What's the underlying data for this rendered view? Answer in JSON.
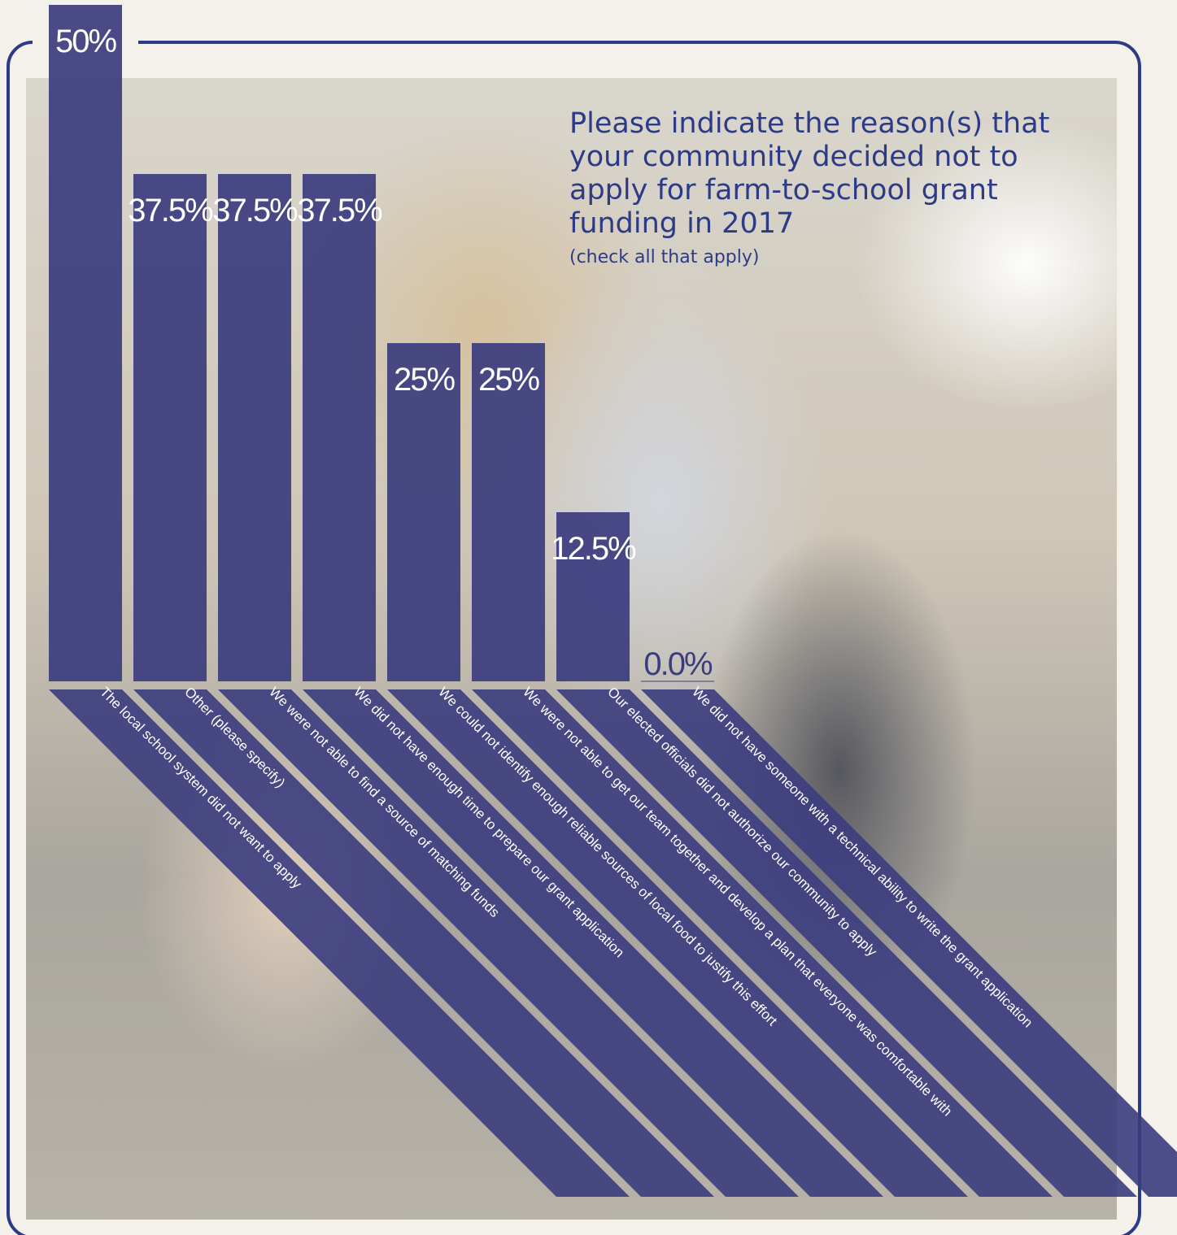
{
  "chart_data": {
    "type": "bar",
    "title": "Please indicate the reason(s) that your community decided not to apply for farm-to-school grant funding in 2017",
    "subtitle": "(check all that apply)",
    "categories": [
      "The local school system did not want to apply",
      "Other (please specify)",
      "We were not able to find a source of matching funds",
      "We did not have enough time to prepare our grant application",
      "We could not identify enough reliable sources of local food to justify this effort",
      "We were not able to get our team together and develop a plan that everyone was comfortable with",
      "Our elected officials did not authorize our community to apply",
      "We did not have someone with a technical ability to write the grant application"
    ],
    "values": [
      50,
      37.5,
      37.5,
      37.5,
      25,
      25,
      12.5,
      0.0
    ],
    "value_labels": [
      "50%",
      "37.5%",
      "37.5%",
      "37.5%",
      "25%",
      "25%",
      "12.5%",
      "0.0%"
    ],
    "ylim": [
      0,
      50
    ],
    "grid": false,
    "legend": "none"
  },
  "colors": {
    "bar": "#3b3c7e",
    "frame": "#2d3a86",
    "title": "#2d3a86"
  }
}
